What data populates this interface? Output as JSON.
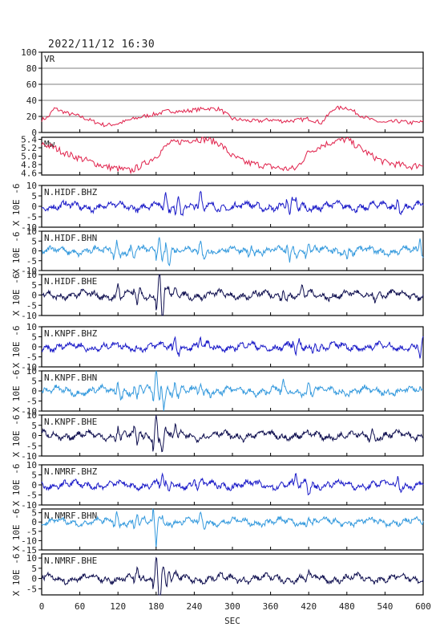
{
  "header": {
    "datetime": "2022/11/12  16:30"
  },
  "chart_data": {
    "type": "line",
    "xlabel": "SEC",
    "xlim": [
      0,
      600
    ],
    "xticks": [
      0,
      60,
      120,
      180,
      240,
      300,
      360,
      420,
      480,
      540,
      600
    ],
    "tick_labels": {
      "vr": [
        "0",
        "20",
        "40",
        "60",
        "80",
        "100"
      ],
      "mw": [
        "4.6",
        "4.8",
        "5.0",
        "5.2",
        "5.4"
      ],
      "wave": [
        "10",
        "5",
        "0",
        "-5",
        "-10"
      ],
      "wave_bhn2": [
        "5",
        "0",
        "-5",
        "-10",
        "-15"
      ],
      "wave_bhe3": [
        "10",
        "5",
        "0",
        "-5"
      ]
    },
    "panels": [
      {
        "label": "VR",
        "kind": "vr",
        "color": "#e0204a",
        "ylim": [
          0,
          100
        ],
        "x": [
          0,
          10,
          20,
          40,
          60,
          80,
          100,
          120,
          140,
          160,
          180,
          200,
          220,
          240,
          260,
          280,
          300,
          320,
          340,
          360,
          380,
          400,
          420,
          440,
          460,
          480,
          500,
          520,
          540,
          560,
          580,
          600
        ],
        "values": [
          16,
          19,
          30,
          24,
          20,
          14,
          9,
          11,
          16,
          20,
          23,
          27,
          26,
          28,
          30,
          29,
          17,
          15,
          14,
          16,
          14,
          15,
          17,
          12,
          30,
          31,
          22,
          15,
          12,
          14,
          12,
          13
        ]
      },
      {
        "label": "Mw",
        "kind": "mw",
        "color": "#e0204a",
        "ylim": [
          4.55,
          5.45
        ],
        "x": [
          0,
          20,
          40,
          60,
          80,
          100,
          120,
          140,
          160,
          180,
          200,
          220,
          240,
          260,
          280,
          300,
          320,
          340,
          360,
          380,
          400,
          420,
          440,
          460,
          480,
          500,
          520,
          540,
          560,
          580,
          600
        ],
        "values": [
          5.3,
          5.2,
          5.05,
          4.95,
          4.85,
          4.75,
          4.7,
          4.65,
          4.8,
          5.0,
          5.3,
          5.35,
          5.4,
          5.4,
          5.3,
          5.0,
          4.85,
          4.8,
          4.75,
          4.7,
          4.7,
          5.1,
          5.25,
          5.35,
          5.4,
          5.2,
          5.0,
          4.85,
          4.8,
          4.75,
          4.8
        ]
      },
      {
        "label": "N.HIDF.BHZ",
        "kind": "wave",
        "color": "#1a1ac8",
        "ylim": [
          -10,
          10
        ],
        "events": [
          [
            195,
            3,
            2
          ],
          [
            215,
            3,
            2
          ],
          [
            250,
            3,
            2
          ],
          [
            390,
            6,
            -1
          ],
          [
            400,
            4,
            1
          ],
          [
            560,
            4,
            1
          ]
        ]
      },
      {
        "label": "N.HIDF.BHN",
        "kind": "wave",
        "color": "#3399dd",
        "ylim": [
          -10,
          10
        ],
        "events": [
          [
            118,
            6,
            1
          ],
          [
            145,
            4,
            -1
          ],
          [
            185,
            9,
            1
          ],
          [
            200,
            6,
            -1
          ],
          [
            250,
            5,
            1
          ],
          [
            330,
            4,
            1
          ],
          [
            390,
            6,
            -1
          ],
          [
            420,
            5,
            1
          ],
          [
            480,
            4,
            -1
          ],
          [
            595,
            6,
            1
          ]
        ]
      },
      {
        "label": "N.HIDF.BHE",
        "kind": "wave",
        "color": "#101050",
        "ylim": [
          -10,
          10
        ],
        "events": [
          [
            120,
            5,
            1
          ],
          [
            150,
            5,
            -1
          ],
          [
            185,
            12,
            1
          ],
          [
            190,
            8,
            -1
          ],
          [
            200,
            5,
            1
          ],
          [
            380,
            4,
            1
          ],
          [
            410,
            4,
            1
          ],
          [
            520,
            3,
            1
          ]
        ]
      },
      {
        "label": "N.KNPF.BHZ",
        "kind": "wave",
        "color": "#1a1ac8",
        "ylim": [
          -10,
          10
        ],
        "events": [
          [
            210,
            5,
            1
          ],
          [
            250,
            4,
            1
          ],
          [
            400,
            5,
            -1
          ],
          [
            430,
            4,
            1
          ],
          [
            595,
            6,
            -1
          ]
        ]
      },
      {
        "label": "N.KNPF.BHN",
        "kind": "wave",
        "color": "#3399dd",
        "ylim": [
          -10,
          10
        ],
        "events": [
          [
            120,
            6,
            1
          ],
          [
            150,
            5,
            -1
          ],
          [
            180,
            11,
            1
          ],
          [
            192,
            9,
            -1
          ],
          [
            210,
            6,
            1
          ],
          [
            250,
            5,
            1
          ],
          [
            380,
            4,
            1
          ],
          [
            420,
            4,
            1
          ]
        ]
      },
      {
        "label": "N.KNPF.BHE",
        "kind": "wave",
        "color": "#101050",
        "ylim": [
          -10,
          10
        ],
        "events": [
          [
            120,
            5,
            1
          ],
          [
            150,
            5,
            -1
          ],
          [
            180,
            12,
            1
          ],
          [
            190,
            9,
            -1
          ],
          [
            210,
            5,
            1
          ],
          [
            520,
            3,
            1
          ]
        ]
      },
      {
        "label": "N.NMRF.BHZ",
        "kind": "wave",
        "color": "#1a1ac8",
        "ylim": [
          -10,
          10
        ],
        "events": [
          [
            190,
            5,
            1
          ],
          [
            200,
            5,
            -1
          ],
          [
            240,
            4,
            1
          ],
          [
            400,
            5,
            1
          ],
          [
            420,
            4,
            -1
          ],
          [
            560,
            4,
            1
          ]
        ]
      },
      {
        "label": "N.NMRF.BHN",
        "kind": "wave",
        "color": "#3399dd",
        "ylim": [
          -15,
          7
        ],
        "events": [
          [
            118,
            6,
            1
          ],
          [
            150,
            5,
            1
          ],
          [
            180,
            14,
            -1
          ],
          [
            190,
            6,
            1
          ],
          [
            250,
            5,
            1
          ],
          [
            420,
            4,
            1
          ]
        ]
      },
      {
        "label": "N.NMRF.BHE",
        "kind": "wave",
        "color": "#101050",
        "ylim": [
          -8,
          12
        ],
        "events": [
          [
            150,
            4,
            1
          ],
          [
            180,
            12,
            1
          ],
          [
            186,
            10,
            -1
          ],
          [
            200,
            5,
            1
          ],
          [
            420,
            3,
            1
          ]
        ]
      }
    ]
  }
}
